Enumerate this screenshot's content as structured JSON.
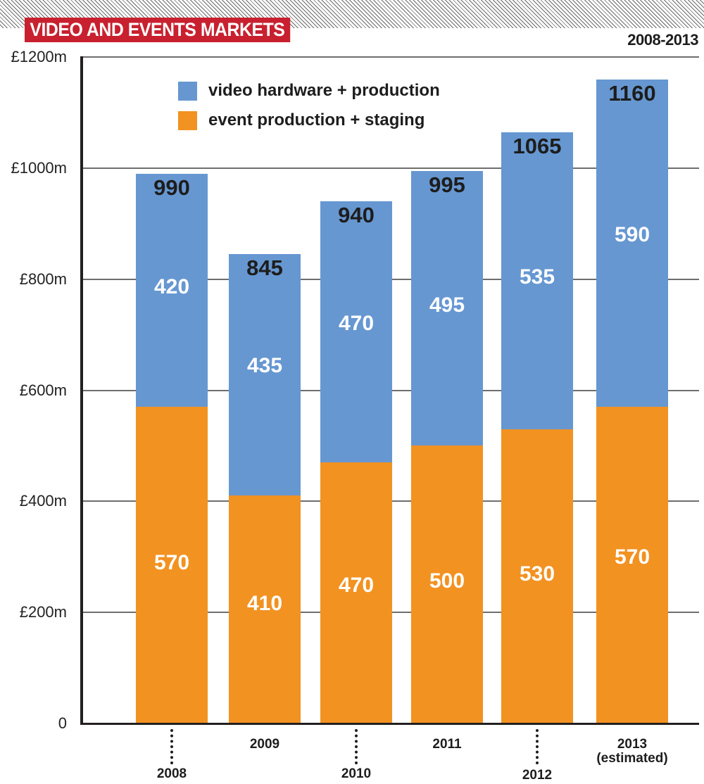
{
  "header": {
    "title": "VIDEO AND EVENTS MARKETS",
    "subtitle": "2008-2013"
  },
  "legend": {
    "items": [
      {
        "label": "video hardware + production",
        "color": "#6697d1"
      },
      {
        "label": "event production + staging",
        "color": "#f29221"
      }
    ]
  },
  "axis": {
    "y_ticks": [
      "0",
      "£200m",
      "£400m",
      "£600m",
      "£800m",
      "£1000m",
      "£1200m"
    ]
  },
  "bars": [
    {
      "year": "2008",
      "sub": "",
      "video": "420",
      "event": "570",
      "total": "990"
    },
    {
      "year": "2009",
      "sub": "",
      "video": "435",
      "event": "410",
      "total": "845"
    },
    {
      "year": "2010",
      "sub": "",
      "video": "470",
      "event": "470",
      "total": "940"
    },
    {
      "year": "2011",
      "sub": "",
      "video": "495",
      "event": "500",
      "total": "995"
    },
    {
      "year": "2012",
      "sub": "",
      "video": "535",
      "event": "530",
      "total": "1065"
    },
    {
      "year": "2013",
      "sub": "(estimated)",
      "video": "590",
      "event": "570",
      "total": "1160"
    }
  ],
  "chart_data": {
    "type": "bar",
    "stacked": true,
    "title": "VIDEO AND EVENTS MARKETS",
    "subtitle": "2008-2013",
    "categories": [
      "2008",
      "2009",
      "2010",
      "2011",
      "2012",
      "2013 (estimated)"
    ],
    "series": [
      {
        "name": "event production + staging",
        "color": "#f29221",
        "values": [
          570,
          410,
          470,
          500,
          530,
          570
        ]
      },
      {
        "name": "video hardware + production",
        "color": "#6697d1",
        "values": [
          420,
          435,
          470,
          495,
          535,
          590
        ]
      }
    ],
    "totals": [
      990,
      845,
      940,
      995,
      1065,
      1160
    ],
    "xlabel": "",
    "ylabel": "",
    "ylim": [
      0,
      1200
    ],
    "y_ticks": [
      0,
      200,
      400,
      600,
      800,
      1000,
      1200
    ],
    "y_tick_labels": [
      "0",
      "£200m",
      "£400m",
      "£600m",
      "£800m",
      "£1000m",
      "£1200m"
    ],
    "grid": true,
    "legend_position": "top-left inside"
  }
}
